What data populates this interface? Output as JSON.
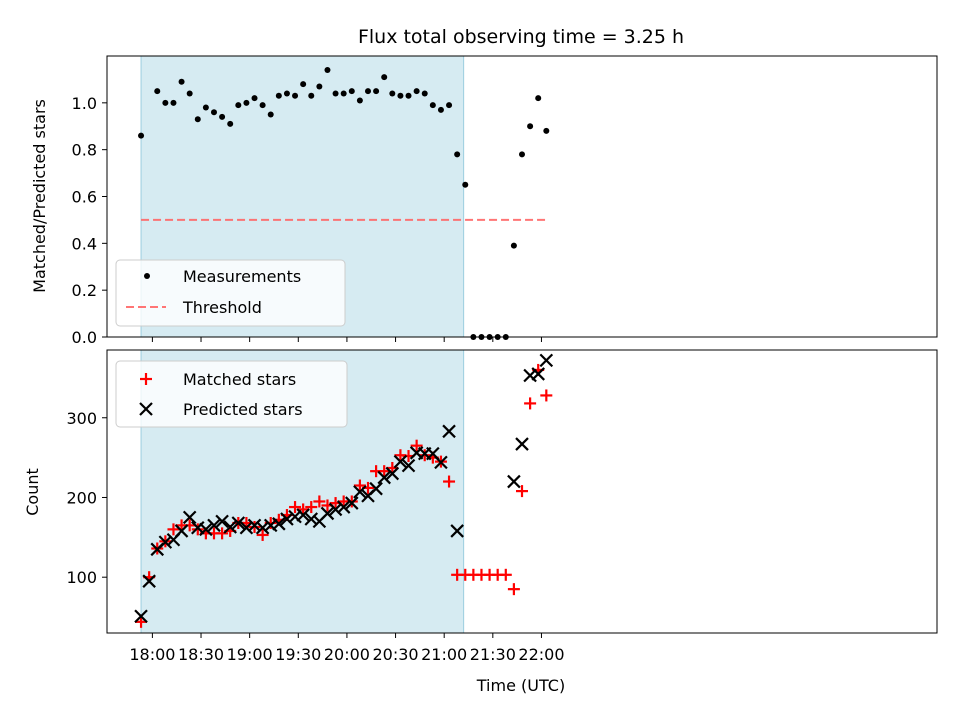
{
  "chart_data": [
    {
      "type": "scatter",
      "title": "Flux total observing time = 3.25 h",
      "xlabel": "",
      "ylabel": "Matched/Predicted stars",
      "ylim": [
        0,
        1.2
      ],
      "yticks": [
        0.0,
        0.2,
        0.4,
        0.6,
        0.8,
        1.0
      ],
      "ytick_labels": [
        "0.0",
        "0.2",
        "0.4",
        "0.6",
        "0.8",
        "1.0"
      ],
      "xlim_minutes_since_start": [
        -28,
        484
      ],
      "xticks": [
        "18:00",
        "18:30",
        "19:00",
        "19:30",
        "20:00",
        "20:30",
        "21:00",
        "21:30",
        "22:00"
      ],
      "highlight_span": [
        "17:53",
        "21:12"
      ],
      "grid": false,
      "legend": {
        "placement": "lower-left",
        "entries": [
          "Measurements",
          "Threshold"
        ]
      },
      "threshold": {
        "name": "Threshold",
        "value": 0.5,
        "color": "#ff6666"
      },
      "series": [
        {
          "name": "Measurements",
          "color": "#000000",
          "x": [
            "17:53",
            "18:03",
            "18:08",
            "18:13",
            "18:18",
            "18:23",
            "18:28",
            "18:33",
            "18:38",
            "18:43",
            "18:48",
            "18:53",
            "18:58",
            "19:03",
            "19:08",
            "19:13",
            "19:18",
            "19:23",
            "19:28",
            "19:33",
            "19:38",
            "19:43",
            "19:48",
            "19:53",
            "19:58",
            "20:03",
            "20:08",
            "20:13",
            "20:18",
            "20:23",
            "20:28",
            "20:33",
            "20:38",
            "20:43",
            "20:48",
            "20:53",
            "20:58",
            "21:03",
            "21:08",
            "21:13",
            "21:18",
            "21:23",
            "21:28",
            "21:33",
            "21:38",
            "21:43",
            "21:48",
            "21:53",
            "21:58",
            "22:03"
          ],
          "y": [
            0.86,
            1.05,
            1.0,
            1.0,
            1.09,
            1.04,
            0.93,
            0.98,
            0.96,
            0.94,
            0.91,
            0.99,
            1.0,
            1.02,
            0.99,
            0.95,
            1.03,
            1.04,
            1.03,
            1.08,
            1.03,
            1.07,
            1.14,
            1.04,
            1.04,
            1.05,
            1.01,
            1.05,
            1.05,
            1.11,
            1.04,
            1.03,
            1.03,
            1.05,
            1.04,
            0.99,
            0.97,
            0.99,
            0.78,
            0.65,
            0.0,
            0.0,
            0.0,
            0.0,
            0.0,
            0.39,
            0.78,
            0.9,
            1.02,
            0.88
          ]
        }
      ]
    },
    {
      "type": "scatter",
      "title": "",
      "xlabel": "Time (UTC)",
      "ylabel": "Count",
      "ylim": [
        30,
        385
      ],
      "yticks": [
        100,
        200,
        300
      ],
      "ytick_labels": [
        "100",
        "200",
        "300"
      ],
      "xlim_minutes_since_start": [
        -28,
        484
      ],
      "xticks": [
        "18:00",
        "18:30",
        "19:00",
        "19:30",
        "20:00",
        "20:30",
        "21:00",
        "21:30",
        "22:00"
      ],
      "highlight_span": [
        "17:53",
        "21:12"
      ],
      "grid": false,
      "legend": {
        "placement": "upper-left",
        "entries": [
          "Matched stars",
          "Predicted stars"
        ]
      },
      "series": [
        {
          "name": "Matched stars",
          "marker": "plus",
          "color": "#ff0000",
          "x": [
            "17:53",
            "17:58",
            "18:03",
            "18:08",
            "18:13",
            "18:18",
            "18:23",
            "18:28",
            "18:33",
            "18:38",
            "18:43",
            "18:48",
            "18:53",
            "18:58",
            "19:03",
            "19:08",
            "19:13",
            "19:18",
            "19:23",
            "19:28",
            "19:33",
            "19:38",
            "19:43",
            "19:48",
            "19:53",
            "19:58",
            "20:03",
            "20:08",
            "20:13",
            "20:18",
            "20:23",
            "20:28",
            "20:33",
            "20:38",
            "20:43",
            "20:48",
            "20:53",
            "20:58",
            "21:03",
            "21:08",
            "21:13",
            "21:18",
            "21:23",
            "21:28",
            "21:33",
            "21:38",
            "21:43",
            "21:48",
            "21:53",
            "21:58",
            "22:03"
          ],
          "y": [
            44,
            100,
            136,
            145,
            160,
            165,
            165,
            160,
            155,
            155,
            155,
            158,
            168,
            168,
            163,
            153,
            168,
            172,
            178,
            188,
            185,
            188,
            195,
            190,
            193,
            195,
            195,
            215,
            212,
            233,
            233,
            237,
            253,
            252,
            265,
            253,
            250,
            245,
            220,
            103,
            103,
            103,
            103,
            103,
            103,
            103,
            85,
            208,
            318,
            360,
            328
          ]
        },
        {
          "name": "Predicted stars",
          "marker": "x",
          "color": "#000000",
          "x": [
            "17:53",
            "17:58",
            "18:03",
            "18:08",
            "18:13",
            "18:18",
            "18:23",
            "18:28",
            "18:33",
            "18:38",
            "18:43",
            "18:48",
            "18:53",
            "18:58",
            "19:03",
            "19:08",
            "19:13",
            "19:18",
            "19:23",
            "19:28",
            "19:33",
            "19:38",
            "19:43",
            "19:48",
            "19:53",
            "19:58",
            "20:03",
            "20:08",
            "20:13",
            "20:18",
            "20:23",
            "20:28",
            "20:33",
            "20:38",
            "20:43",
            "20:48",
            "20:53",
            "20:58",
            "21:03",
            "21:08",
            "21:43",
            "21:48",
            "21:53",
            "21:58",
            "22:03"
          ],
          "y": [
            51,
            95,
            135,
            144,
            147,
            158,
            175,
            162,
            160,
            165,
            170,
            163,
            168,
            162,
            165,
            162,
            165,
            167,
            173,
            176,
            178,
            173,
            170,
            180,
            185,
            188,
            193,
            207,
            202,
            211,
            225,
            230,
            245,
            240,
            256,
            255,
            255,
            244,
            283,
            158,
            220,
            267,
            353,
            355,
            372
          ]
        }
      ]
    }
  ]
}
